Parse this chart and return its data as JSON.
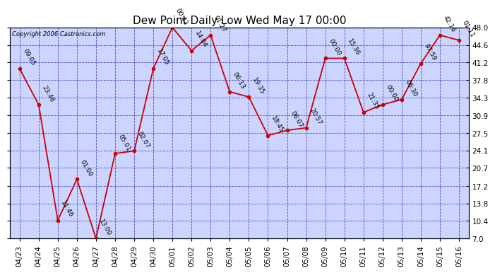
{
  "title": "Dew Point Daily Low Wed May 17 00:00",
  "copyright": "Copyright 2006 Castronics.com",
  "x_labels": [
    "04/23",
    "04/24",
    "04/25",
    "04/26",
    "04/27",
    "04/28",
    "04/29",
    "04/30",
    "05/01",
    "05/02",
    "05/03",
    "05/04",
    "05/05",
    "05/06",
    "05/07",
    "05/08",
    "05/09",
    "05/10",
    "05/11",
    "05/12",
    "05/13",
    "05/14",
    "05/15",
    "05/16"
  ],
  "y_values": [
    40.0,
    33.0,
    10.5,
    18.5,
    7.0,
    23.5,
    24.0,
    40.0,
    48.0,
    43.5,
    46.5,
    35.5,
    34.5,
    27.0,
    28.0,
    28.5,
    42.0,
    42.0,
    31.5,
    33.0,
    34.0,
    41.0,
    46.5,
    45.5
  ],
  "point_labels": [
    "09:05",
    "23:46",
    "11:46",
    "01:00",
    "13:00",
    "05:01",
    "02:07",
    "17:05",
    "00:42",
    "14:04",
    "01:27",
    "06:13",
    "19:35",
    "18:45",
    "06:07",
    "20:57",
    "00:00",
    "15:36",
    "21:35",
    "00:00",
    "06:30",
    "97:59",
    "42:16",
    "01:11"
  ],
  "ylim": [
    7.0,
    48.0
  ],
  "y_ticks": [
    7.0,
    10.4,
    13.8,
    17.2,
    20.7,
    24.1,
    27.5,
    30.9,
    34.3,
    37.8,
    41.2,
    44.6,
    48.0
  ],
  "line_color": "#cc0000",
  "marker_color": "#cc0000",
  "plot_bg": "#ccd5ff",
  "grid_color": "#3333bb",
  "text_color": "#000000",
  "title_fontsize": 11,
  "label_fontsize": 6.5,
  "tick_fontsize": 7.5,
  "fig_width": 6.9,
  "fig_height": 3.75,
  "dpi": 100
}
